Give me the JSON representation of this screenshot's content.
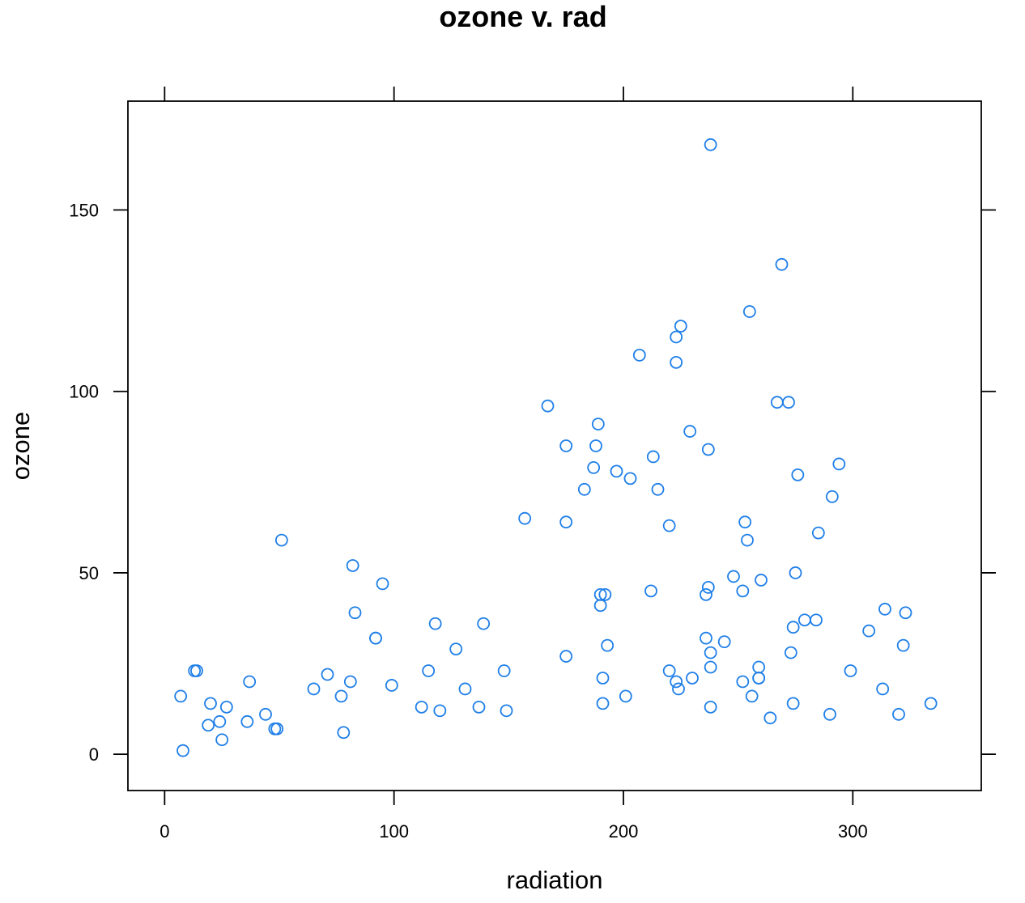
{
  "chart_data": {
    "type": "scatter",
    "title": "ozone v. rad",
    "xlabel": "radiation",
    "ylabel": "ozone",
    "xlim": [
      -16,
      356
    ],
    "ylim": [
      -10,
      180
    ],
    "xticks": [
      0,
      100,
      200,
      300
    ],
    "yticks": [
      0,
      50,
      100,
      150
    ],
    "xtick_labels": [
      "0",
      "100",
      "200",
      "300"
    ],
    "ytick_labels": [
      "0",
      "50",
      "100",
      "150"
    ],
    "grid": false,
    "legend": "none",
    "point_color": "#1f7fe8",
    "points": [
      {
        "x": 7,
        "y": 16
      },
      {
        "x": 8,
        "y": 1
      },
      {
        "x": 13,
        "y": 23
      },
      {
        "x": 14,
        "y": 23
      },
      {
        "x": 19,
        "y": 8
      },
      {
        "x": 20,
        "y": 14
      },
      {
        "x": 24,
        "y": 9
      },
      {
        "x": 25,
        "y": 4
      },
      {
        "x": 27,
        "y": 13
      },
      {
        "x": 36,
        "y": 9
      },
      {
        "x": 37,
        "y": 20
      },
      {
        "x": 44,
        "y": 11
      },
      {
        "x": 48,
        "y": 7
      },
      {
        "x": 49,
        "y": 7
      },
      {
        "x": 51,
        "y": 59
      },
      {
        "x": 65,
        "y": 18
      },
      {
        "x": 71,
        "y": 22
      },
      {
        "x": 77,
        "y": 16
      },
      {
        "x": 78,
        "y": 6
      },
      {
        "x": 81,
        "y": 20
      },
      {
        "x": 82,
        "y": 52
      },
      {
        "x": 83,
        "y": 39
      },
      {
        "x": 92,
        "y": 32
      },
      {
        "x": 92,
        "y": 32
      },
      {
        "x": 95,
        "y": 47
      },
      {
        "x": 99,
        "y": 19
      },
      {
        "x": 112,
        "y": 13
      },
      {
        "x": 115,
        "y": 23
      },
      {
        "x": 118,
        "y": 36
      },
      {
        "x": 120,
        "y": 12
      },
      {
        "x": 127,
        "y": 29
      },
      {
        "x": 131,
        "y": 18
      },
      {
        "x": 137,
        "y": 13
      },
      {
        "x": 139,
        "y": 36
      },
      {
        "x": 148,
        "y": 23
      },
      {
        "x": 149,
        "y": 12
      },
      {
        "x": 157,
        "y": 65
      },
      {
        "x": 167,
        "y": 96
      },
      {
        "x": 175,
        "y": 85
      },
      {
        "x": 175,
        "y": 64
      },
      {
        "x": 175,
        "y": 27
      },
      {
        "x": 183,
        "y": 73
      },
      {
        "x": 187,
        "y": 79
      },
      {
        "x": 188,
        "y": 85
      },
      {
        "x": 189,
        "y": 91
      },
      {
        "x": 190,
        "y": 44
      },
      {
        "x": 190,
        "y": 41
      },
      {
        "x": 191,
        "y": 21
      },
      {
        "x": 191,
        "y": 14
      },
      {
        "x": 192,
        "y": 44
      },
      {
        "x": 193,
        "y": 30
      },
      {
        "x": 197,
        "y": 78
      },
      {
        "x": 201,
        "y": 16
      },
      {
        "x": 203,
        "y": 76
      },
      {
        "x": 207,
        "y": 110
      },
      {
        "x": 212,
        "y": 45
      },
      {
        "x": 213,
        "y": 82
      },
      {
        "x": 215,
        "y": 73
      },
      {
        "x": 220,
        "y": 63
      },
      {
        "x": 220,
        "y": 23
      },
      {
        "x": 223,
        "y": 115
      },
      {
        "x": 223,
        "y": 108
      },
      {
        "x": 223,
        "y": 20
      },
      {
        "x": 224,
        "y": 18
      },
      {
        "x": 225,
        "y": 118
      },
      {
        "x": 229,
        "y": 89
      },
      {
        "x": 230,
        "y": 21
      },
      {
        "x": 236,
        "y": 44
      },
      {
        "x": 236,
        "y": 32
      },
      {
        "x": 237,
        "y": 84
      },
      {
        "x": 237,
        "y": 46
      },
      {
        "x": 238,
        "y": 168
      },
      {
        "x": 238,
        "y": 28
      },
      {
        "x": 238,
        "y": 24
      },
      {
        "x": 238,
        "y": 13
      },
      {
        "x": 244,
        "y": 31
      },
      {
        "x": 248,
        "y": 49
      },
      {
        "x": 252,
        "y": 45
      },
      {
        "x": 252,
        "y": 20
      },
      {
        "x": 253,
        "y": 64
      },
      {
        "x": 254,
        "y": 59
      },
      {
        "x": 255,
        "y": 122
      },
      {
        "x": 256,
        "y": 16
      },
      {
        "x": 259,
        "y": 24
      },
      {
        "x": 259,
        "y": 21
      },
      {
        "x": 259,
        "y": 21
      },
      {
        "x": 260,
        "y": 48
      },
      {
        "x": 264,
        "y": 10
      },
      {
        "x": 267,
        "y": 97
      },
      {
        "x": 269,
        "y": 135
      },
      {
        "x": 272,
        "y": 97
      },
      {
        "x": 273,
        "y": 28
      },
      {
        "x": 274,
        "y": 35
      },
      {
        "x": 274,
        "y": 14
      },
      {
        "x": 275,
        "y": 50
      },
      {
        "x": 276,
        "y": 77
      },
      {
        "x": 279,
        "y": 37
      },
      {
        "x": 284,
        "y": 37
      },
      {
        "x": 285,
        "y": 61
      },
      {
        "x": 290,
        "y": 11
      },
      {
        "x": 291,
        "y": 71
      },
      {
        "x": 294,
        "y": 80
      },
      {
        "x": 299,
        "y": 23
      },
      {
        "x": 307,
        "y": 34
      },
      {
        "x": 313,
        "y": 18
      },
      {
        "x": 314,
        "y": 40
      },
      {
        "x": 320,
        "y": 11
      },
      {
        "x": 322,
        "y": 30
      },
      {
        "x": 323,
        "y": 39
      },
      {
        "x": 334,
        "y": 14
      }
    ]
  }
}
